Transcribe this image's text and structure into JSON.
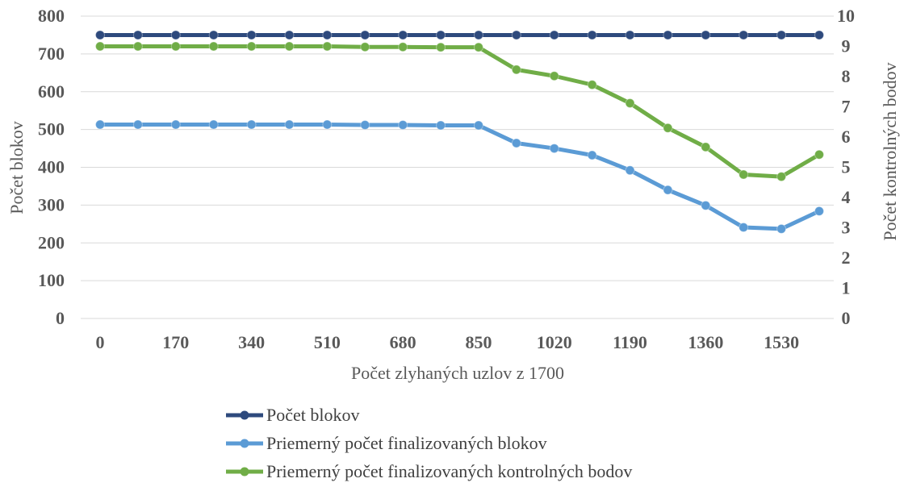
{
  "chart_data": {
    "type": "line",
    "title": "",
    "xlabel": "Počet zlyhaných uzlov z 1700",
    "ylabel": "Počet blokov",
    "y2label": "Počet kontrolných bodov",
    "x": [
      0,
      85,
      170,
      255,
      340,
      425,
      510,
      595,
      680,
      765,
      850,
      935,
      1020,
      1105,
      1190,
      1275,
      1360,
      1445,
      1530,
      1615
    ],
    "x_tick_labels": [
      "0",
      "170",
      "340",
      "510",
      "680",
      "850",
      "1020",
      "1190",
      "1360",
      "1530"
    ],
    "y_ticks": [
      "0",
      "100",
      "200",
      "300",
      "400",
      "500",
      "600",
      "700",
      "800"
    ],
    "y2_ticks": [
      "0",
      "1",
      "2",
      "3",
      "4",
      "5",
      "6",
      "7",
      "8",
      "9",
      "10"
    ],
    "ylim": [
      0,
      800
    ],
    "y2lim": [
      0,
      10
    ],
    "grid": true,
    "legend_position": "bottom",
    "series": [
      {
        "name": "Počet blokov",
        "axis": "left",
        "color": "#2E4A7D",
        "values": [
          750,
          750,
          750,
          750,
          750,
          750,
          750,
          750,
          750,
          750,
          750,
          750,
          750,
          750,
          750,
          750,
          750,
          750,
          750,
          750
        ]
      },
      {
        "name": "Priemerný počet finalizovaných blokov",
        "axis": "left",
        "color": "#5B9BD5",
        "values": [
          513,
          513,
          513,
          513,
          513,
          513,
          513,
          512,
          512,
          511,
          511,
          464,
          450,
          432,
          392,
          340,
          299,
          241,
          237,
          284
        ]
      },
      {
        "name": "Priemerný počet finalizovaných kontrolných bodov",
        "axis": "right",
        "color": "#70AD47",
        "values": [
          9.0,
          9.0,
          9.0,
          9.0,
          9.0,
          9.0,
          9.0,
          8.98,
          8.98,
          8.97,
          8.97,
          8.23,
          8.02,
          7.73,
          7.12,
          6.3,
          5.67,
          4.76,
          4.69,
          5.42
        ]
      }
    ]
  }
}
